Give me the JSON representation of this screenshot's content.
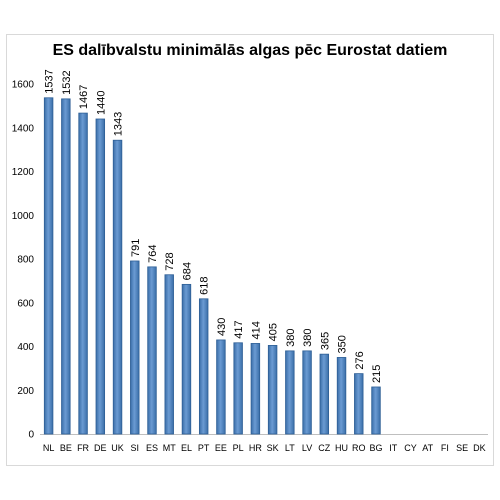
{
  "chart_data": {
    "type": "bar",
    "title": "ES dalībvalstu minimālās algas pēc Eurostat datiem",
    "xlabel": "",
    "ylabel": "",
    "categories": [
      "NL",
      "BE",
      "FR",
      "DE",
      "UK",
      "SI",
      "ES",
      "MT",
      "EL",
      "PT",
      "EE",
      "PL",
      "HR",
      "SK",
      "LT",
      "LV",
      "CZ",
      "HU",
      "RO",
      "BG",
      "IT",
      "CY",
      "AT",
      "FI",
      "SE",
      "DK"
    ],
    "values": [
      1537,
      1532,
      1467,
      1440,
      1343,
      791,
      764,
      728,
      684,
      618,
      430,
      417,
      414,
      405,
      380,
      380,
      365,
      350,
      276,
      215,
      null,
      null,
      null,
      null,
      null,
      null
    ],
    "ylim": [
      0,
      1600
    ],
    "yticks": [
      0,
      200,
      400,
      600,
      800,
      1000,
      1200,
      1400,
      1600
    ],
    "grid": false,
    "legend": "none",
    "bar_color": "#4f81bd",
    "bar_edge_color": "#2e5f96"
  }
}
